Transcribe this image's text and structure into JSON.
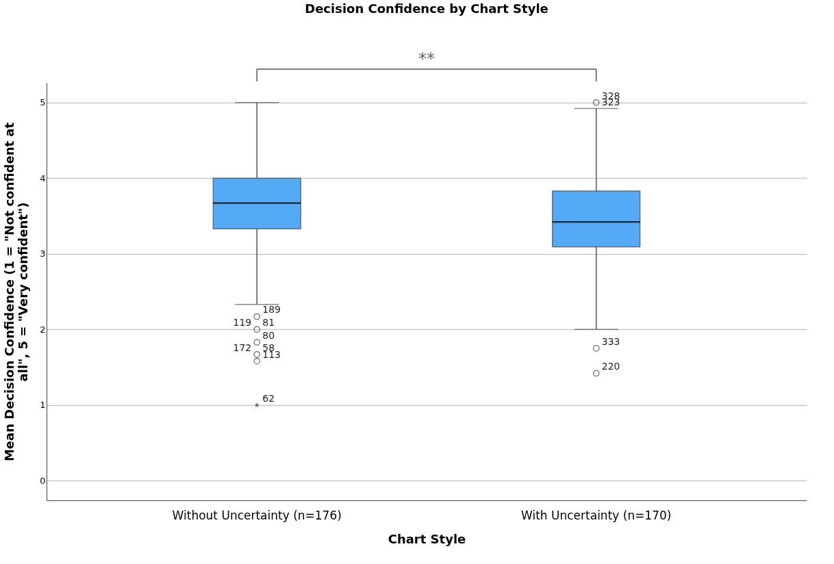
{
  "chart_data": {
    "type": "box",
    "title": "Decision Confidence by Chart Style",
    "xlabel": "Chart Style",
    "ylabel": "Mean Decision Confidence (1 = \"Not confident at all\", 5 = \"Very confident\")",
    "categories": [
      "Without Uncertainty (n=176)",
      "With Uncertainty (n=170)"
    ],
    "series": [
      {
        "color": "#55aaf6",
        "boxes": [
          {
            "low": 2.33,
            "q1": 3.33,
            "median": 3.67,
            "q3": 4.0,
            "high": 5.0
          },
          {
            "low": 2.0,
            "q1": 3.09,
            "median": 3.42,
            "q3": 3.83,
            "high": 4.92
          }
        ]
      },
      {
        "type": "scatter",
        "marker": "circle",
        "color": "#333333",
        "x": [
          "Without Uncertainty (n=176)",
          "Without Uncertainty (n=176)",
          "Without Uncertainty (n=176)",
          "Without Uncertainty (n=176)",
          "Without Uncertainty (n=176)",
          "With Uncertainty (n=170)",
          "With Uncertainty (n=170)",
          "With Uncertainty (n=170)"
        ],
        "values": [
          2.17,
          2.0,
          1.83,
          1.67,
          1.58,
          5.0,
          1.75,
          1.42
        ]
      },
      {
        "type": "scatter",
        "marker": "star",
        "color": "#333333",
        "x": [
          "Without Uncertainty (n=176)"
        ],
        "values": [
          1.0
        ]
      }
    ],
    "ylim": [
      -0.26,
      5.26
    ],
    "yticks": [
      0,
      1,
      2,
      3,
      4,
      5
    ],
    "grid": "y",
    "annotations": [
      "**",
      {
        "text": "189",
        "x": "Without Uncertainty (n=176)",
        "y": 2.17
      },
      {
        "text": "119",
        "x": "Without Uncertainty (n=176)",
        "y": 2.0
      },
      {
        "text": "81",
        "x": "Without Uncertainty (n=176)",
        "y": 2.0
      },
      {
        "text": "80",
        "x": "Without Uncertainty (n=176)",
        "y": 1.83
      },
      {
        "text": "172",
        "x": "Without Uncertainty (n=176)",
        "y": 1.67
      },
      {
        "text": "58",
        "x": "Without Uncertainty (n=176)",
        "y": 1.67
      },
      {
        "text": "113",
        "x": "Without Uncertainty (n=176)",
        "y": 1.58
      },
      {
        "text": "62",
        "x": "Without Uncertainty (n=176)",
        "y": 1.0
      },
      {
        "text": "328",
        "x": "With Uncertainty (n=170)",
        "y": 5.0
      },
      {
        "text": "323",
        "x": "With Uncertainty (n=170)",
        "y": 4.92
      },
      {
        "text": "333",
        "x": "With Uncertainty (n=170)",
        "y": 1.75
      },
      {
        "text": "220",
        "x": "With Uncertainty (n=170)",
        "y": 1.42
      }
    ]
  }
}
